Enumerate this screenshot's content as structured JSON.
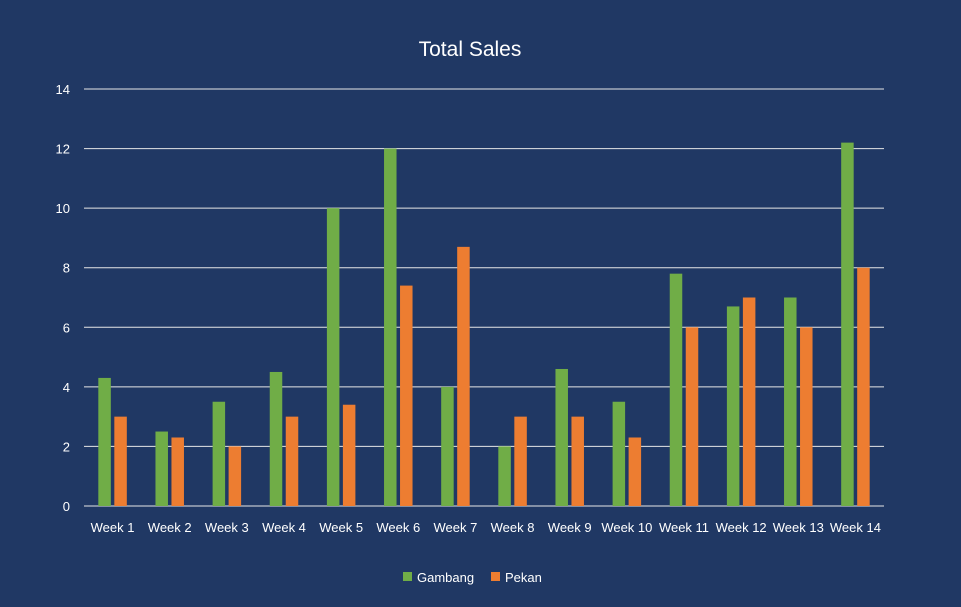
{
  "chart_data": {
    "type": "bar",
    "title": "Total Sales",
    "xlabel": "",
    "ylabel": "",
    "ylim": [
      0,
      14
    ],
    "yticks": [
      0,
      2,
      4,
      6,
      8,
      10,
      12,
      14
    ],
    "grid": true,
    "legend_position": "bottom",
    "categories": [
      "Week 1",
      "Week 2",
      "Week 3",
      "Week 4",
      "Week 5",
      "Week 6",
      "Week 7",
      "Week 8",
      "Week 9",
      "Week 10",
      "Week 11",
      "Week 12",
      "Week 13",
      "Week 14"
    ],
    "series": [
      {
        "name": "Gambang",
        "color": "#70AD47",
        "values": [
          4.3,
          2.5,
          3.5,
          4.5,
          10,
          12,
          4,
          2,
          4.6,
          3.5,
          7.8,
          6.7,
          7,
          12.2
        ]
      },
      {
        "name": "Pekan",
        "color": "#ED7D31",
        "values": [
          3,
          2.3,
          2,
          3,
          3.4,
          7.4,
          8.7,
          3,
          3,
          2.3,
          6,
          7,
          6,
          8
        ]
      }
    ],
    "background": "#203864",
    "gridline_color": "#e6e6e6"
  }
}
